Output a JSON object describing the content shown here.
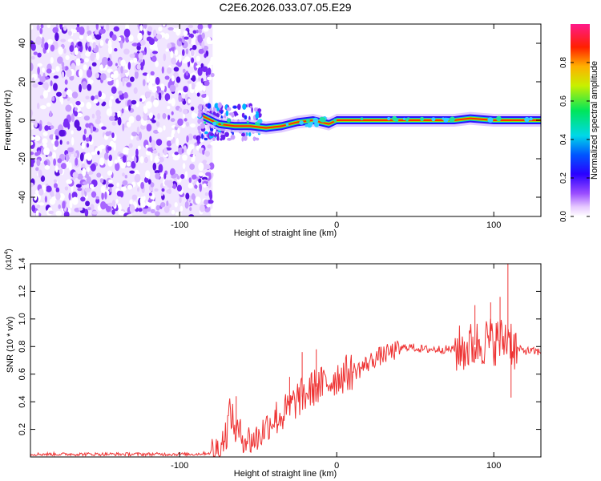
{
  "title": "C2E6.2026.033.07.05.E29",
  "chart_data": [
    {
      "type": "heatmap",
      "xlabel": "Height of straight line (km)",
      "ylabel": "Frequency (Hz)",
      "xlim": [
        -195,
        130
      ],
      "ylim": [
        -50,
        50
      ],
      "x_ticks": [
        -100,
        0,
        100
      ],
      "y_ticks": [
        -40,
        -20,
        0,
        20,
        40
      ],
      "colorbar": {
        "label": "Normalized spectral amplitude",
        "range": [
          0,
          1
        ],
        "ticks": [
          0.0,
          0.2,
          0.4,
          0.6,
          0.8
        ],
        "tick_labels": [
          "0.0",
          "0.2",
          "0.4",
          "0.6",
          "0.8"
        ]
      },
      "noise_region_x": [
        -195,
        -79
      ],
      "ridge": [
        {
          "x": -85,
          "f": 2
        },
        {
          "x": -75,
          "f": -2
        },
        {
          "x": -65,
          "f": -3
        },
        {
          "x": -55,
          "f": -3
        },
        {
          "x": -45,
          "f": -4
        },
        {
          "x": -35,
          "f": -3
        },
        {
          "x": -25,
          "f": -1
        },
        {
          "x": -15,
          "f": 0
        },
        {
          "x": -5,
          "f": -2
        },
        {
          "x": 0,
          "f": 0
        },
        {
          "x": 20,
          "f": 0
        },
        {
          "x": 50,
          "f": 0
        },
        {
          "x": 75,
          "f": 0
        },
        {
          "x": 85,
          "f": 1
        },
        {
          "x": 100,
          "f": 0
        },
        {
          "x": 110,
          "f": 0
        },
        {
          "x": 130,
          "f": 0
        }
      ]
    },
    {
      "type": "line",
      "xlabel": "Height of straight line (km)",
      "ylabel": "SNR (10 * v/v)",
      "y_multiplier": "(x10",
      "y_multiplier_exp": "4",
      "xlim": [
        -195,
        130
      ],
      "ylim": [
        0,
        1.4
      ],
      "x_ticks": [
        -100,
        0,
        100
      ],
      "y_ticks": [
        0.2,
        0.4,
        0.6,
        0.8,
        1.0,
        1.2,
        1.4
      ],
      "y_tick_labels": [
        "0.2",
        "0.4",
        "0.6",
        "0.8",
        "1.0",
        "1.2",
        "1.4"
      ],
      "series": [
        {
          "color": "#ee3333",
          "x": [
            -195,
            -160,
            -120,
            -90,
            -80,
            -75,
            -70,
            -68,
            -65,
            -60,
            -55,
            -50,
            -45,
            -40,
            -35,
            -30,
            -25,
            -20,
            -15,
            -10,
            -5,
            0,
            5,
            10,
            15,
            20,
            25,
            30,
            35,
            40,
            45,
            50,
            55,
            60,
            65,
            70,
            75,
            80,
            85,
            90,
            95,
            100,
            105,
            108,
            110,
            112,
            115,
            120,
            130
          ],
          "y": [
            0.02,
            0.02,
            0.02,
            0.02,
            0.03,
            0.06,
            0.18,
            0.35,
            0.2,
            0.15,
            0.12,
            0.14,
            0.22,
            0.28,
            0.3,
            0.35,
            0.42,
            0.45,
            0.5,
            0.52,
            0.54,
            0.58,
            0.6,
            0.62,
            0.64,
            0.68,
            0.72,
            0.74,
            0.76,
            0.78,
            0.8,
            0.79,
            0.78,
            0.78,
            0.78,
            0.78,
            0.78,
            0.78,
            0.8,
            0.82,
            0.84,
            0.84,
            0.84,
            0.86,
            0.9,
            0.8,
            0.78,
            0.77,
            0.76
          ],
          "peaks": [
            {
              "x": -64,
              "y": 0.44
            },
            {
              "x": -30,
              "y": 0.58
            },
            {
              "x": -22,
              "y": 0.76
            },
            {
              "x": -13,
              "y": 0.78
            },
            {
              "x": 88,
              "y": 1.1
            },
            {
              "x": 98,
              "y": 1.12
            },
            {
              "x": 104,
              "y": 1.16
            },
            {
              "x": 109,
              "y": 1.4
            },
            {
              "x": 111,
              "y": 0.43
            }
          ]
        }
      ]
    }
  ]
}
